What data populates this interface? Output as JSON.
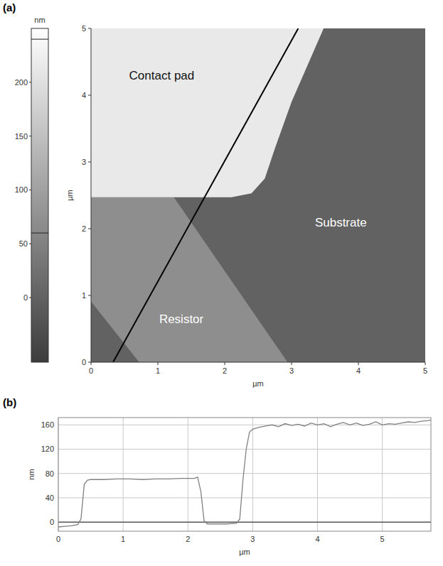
{
  "chart_data": [
    {
      "type": "image",
      "title": "(a)",
      "xlabel": "µm",
      "ylabel": "µm",
      "xlim": [
        0,
        5
      ],
      "ylim": [
        0,
        5
      ],
      "xticks": [
        0,
        1,
        2,
        3,
        4,
        5
      ],
      "yticks": [
        0,
        1,
        2,
        3,
        4,
        5
      ],
      "colorbar_label": "nm",
      "colorbar_lim": [
        -60,
        250
      ],
      "colorbar_ticks": [
        0,
        50,
        100,
        150,
        200
      ],
      "colorbar_markers": [
        60,
        240
      ],
      "regions": [
        {
          "height": 0,
          "polygon": [
            [
              0,
              0
            ],
            [
              5,
              0
            ],
            [
              5,
              5
            ],
            [
              0,
              5
            ]
          ]
        },
        {
          "height": 70,
          "polygon": [
            [
              0,
              2.47
            ],
            [
              1.24,
              2.47
            ],
            [
              2.94,
              0
            ],
            [
              0.72,
              0
            ],
            [
              0,
              0.91
            ]
          ]
        },
        {
          "height": 215,
          "polygon": [
            [
              0,
              5
            ],
            [
              3.48,
              5
            ],
            [
              3.0,
              3.9
            ],
            [
              2.75,
              3.2
            ],
            [
              2.6,
              2.75
            ],
            [
              2.4,
              2.53
            ],
            [
              2.1,
              2.47
            ],
            [
              0,
              2.47
            ]
          ]
        }
      ],
      "profile": {
        "x": [
          0.33,
          3.1
        ],
        "y": [
          0,
          5
        ]
      },
      "annotations": [
        {
          "text": "Contact pad",
          "x": 0.57,
          "y": 4.3
        },
        {
          "text": "Substrate",
          "x": 3.35,
          "y": 2.1
        },
        {
          "text": "Resistor",
          "x": 1.02,
          "y": 0.65
        }
      ]
    },
    {
      "type": "line",
      "title": "(b)",
      "xlabel": "µm",
      "ylabel": "nm",
      "xlim": [
        0,
        5.75
      ],
      "ylim": [
        -15,
        172
      ],
      "xticks": [
        0,
        1,
        2,
        3,
        4,
        5
      ],
      "yticks": [
        0,
        40,
        80,
        120,
        160
      ],
      "grid": true,
      "color": "#808080",
      "x": [
        0,
        0.1,
        0.2,
        0.3,
        0.35,
        0.4,
        0.45,
        0.5,
        0.7,
        0.9,
        1.1,
        1.3,
        1.5,
        1.7,
        1.9,
        2.1,
        2.15,
        2.2,
        2.25,
        2.3,
        2.4,
        2.6,
        2.75,
        2.8,
        2.85,
        2.9,
        2.95,
        3.0,
        3.1,
        3.2,
        3.3,
        3.4,
        3.5,
        3.6,
        3.7,
        3.8,
        3.9,
        4.0,
        4.1,
        4.2,
        4.3,
        4.4,
        4.5,
        4.6,
        4.7,
        4.8,
        4.9,
        5.0,
        5.1,
        5.2,
        5.3,
        5.4,
        5.5,
        5.6,
        5.7,
        5.75
      ],
      "values": [
        -8,
        -7,
        -6,
        -4,
        5,
        62,
        69,
        70,
        70,
        71,
        71,
        70,
        71,
        71,
        72,
        72,
        74,
        50,
        2,
        -3,
        -3,
        -3,
        -2,
        5,
        70,
        120,
        148,
        153,
        156,
        158,
        160,
        157,
        162,
        159,
        161,
        158,
        163,
        160,
        162,
        157,
        161,
        164,
        160,
        163,
        159,
        161,
        165,
        160,
        162,
        161,
        163,
        165,
        164,
        166,
        167,
        168
      ]
    }
  ]
}
